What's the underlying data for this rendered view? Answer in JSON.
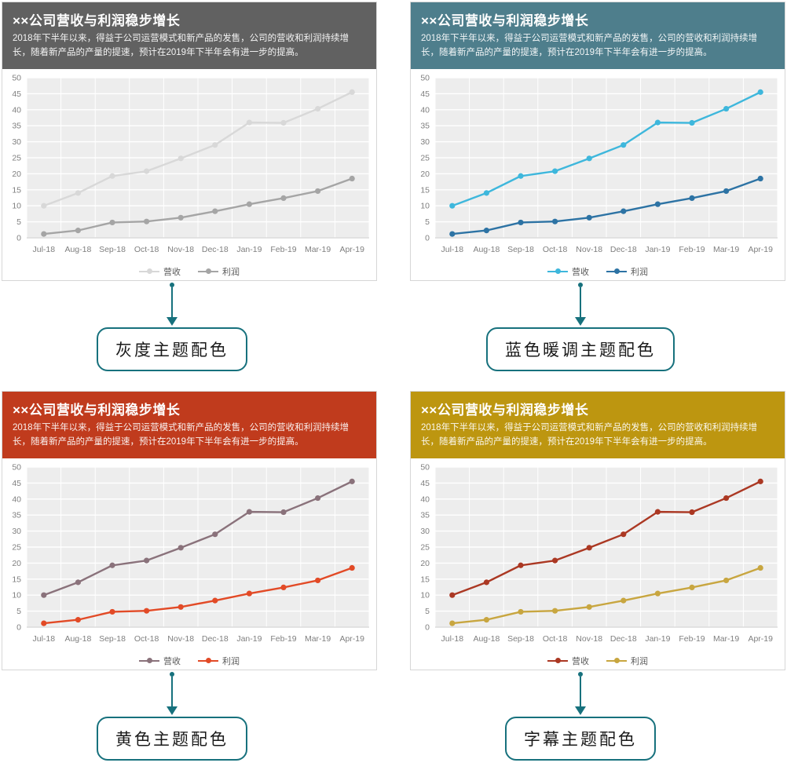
{
  "header": {
    "title": "××公司营收与利润稳步增长",
    "subtitle": "2018年下半年以来，得益于公司运营模式和新产品的发售，公司的营收和利润持续增长，随着新产品的产量的提速，预计在2019年下半年会有进一步的提高。"
  },
  "panels": [
    {
      "theme": "gray",
      "caption": "灰度主题配色",
      "header_bg": "#616161",
      "revenue_color": "#d8d8d8",
      "profit_color": "#a5a5a5"
    },
    {
      "theme": "blue",
      "caption": "蓝色暖调主题配色",
      "header_bg": "#4e7e8c",
      "revenue_color": "#3eb7dc",
      "profit_color": "#2d73a4"
    },
    {
      "theme": "yellow",
      "caption": "黄色主题配色",
      "header_bg": "#c03b1d",
      "revenue_color": "#8a727b",
      "profit_color": "#e24a26"
    },
    {
      "theme": "subtitle",
      "caption": "字幕主题配色",
      "header_bg": "#bd9610",
      "revenue_color": "#ab3823",
      "profit_color": "#c8a640"
    }
  ],
  "chart_data": {
    "type": "line",
    "x": [
      "Jul-18",
      "Aug-18",
      "Sep-18",
      "Oct-18",
      "Nov-18",
      "Dec-18",
      "Jan-19",
      "Feb-19",
      "Mar-19",
      "Apr-19"
    ],
    "series": [
      {
        "name": "营收",
        "values": [
          10,
          14,
          19.3,
          20.8,
          24.8,
          29,
          36,
          35.9,
          40.3,
          45.5
        ]
      },
      {
        "name": "利润",
        "values": [
          1.2,
          2.3,
          4.8,
          5.1,
          6.3,
          8.3,
          10.5,
          12.4,
          14.6,
          18.5
        ]
      }
    ],
    "ylim": [
      0,
      50
    ],
    "ytick_step": 5,
    "grid": true,
    "legend_position": "bottom",
    "plot_bg": "#ededed",
    "gridline_color": "#ffffff",
    "tick_color": "#7f7f7f"
  },
  "accent_color": "#17717d"
}
